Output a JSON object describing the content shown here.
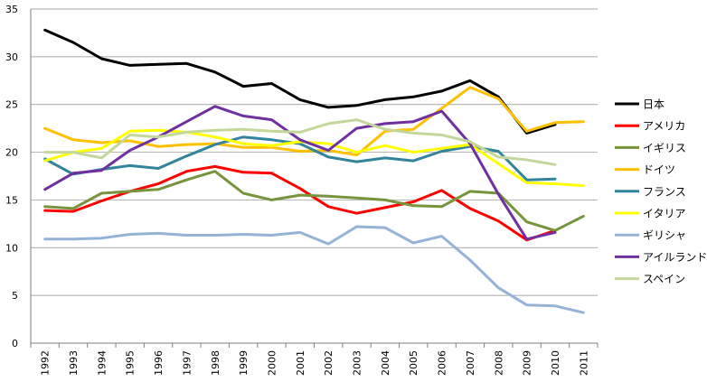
{
  "chart_data": {
    "type": "line",
    "title": "",
    "xlabel": "",
    "ylabel": "",
    "ylim": [
      0,
      35
    ],
    "yticks": [
      0,
      5,
      10,
      15,
      20,
      25,
      30,
      35
    ],
    "grid": true,
    "legend": "right",
    "x": [
      "1992",
      "1993",
      "1994",
      "1995",
      "1996",
      "1997",
      "1998",
      "1999",
      "2000",
      "2001",
      "2002",
      "2003",
      "2004",
      "2005",
      "2006",
      "2007",
      "2008",
      "2009",
      "2010",
      "2011"
    ],
    "series": [
      {
        "name": "日本",
        "color": "#000000",
        "width": 3,
        "values": [
          32.8,
          31.5,
          29.8,
          29.1,
          29.2,
          29.3,
          28.4,
          26.9,
          27.2,
          25.5,
          24.7,
          24.9,
          25.5,
          25.8,
          26.4,
          27.5,
          25.8,
          22.0,
          22.9,
          null
        ]
      },
      {
        "name": "アメリカ",
        "color": "#ff0000",
        "width": 3,
        "values": [
          13.9,
          13.8,
          14.9,
          15.9,
          16.7,
          18.0,
          18.5,
          17.9,
          17.8,
          16.2,
          14.3,
          13.6,
          14.2,
          14.8,
          16.0,
          14.1,
          12.8,
          10.8,
          11.8,
          null
        ]
      },
      {
        "name": "イギリス",
        "color": "#77933c",
        "width": 3,
        "values": [
          14.3,
          14.1,
          15.7,
          15.9,
          16.1,
          17.1,
          18.0,
          15.7,
          15.0,
          15.5,
          15.4,
          15.2,
          15.0,
          14.4,
          14.3,
          15.9,
          15.7,
          12.7,
          11.8,
          13.3
        ]
      },
      {
        "name": "ドイツ",
        "color": "#ffc000",
        "width": 3,
        "values": [
          22.5,
          21.3,
          21.0,
          21.2,
          20.6,
          20.8,
          20.9,
          20.5,
          20.5,
          20.1,
          20.2,
          19.7,
          22.2,
          22.4,
          24.6,
          26.8,
          25.6,
          22.2,
          23.1,
          23.2
        ]
      },
      {
        "name": "フランス",
        "color": "#31849b",
        "width": 3,
        "values": [
          19.3,
          17.7,
          18.2,
          18.6,
          18.3,
          19.6,
          20.8,
          21.6,
          21.3,
          20.9,
          19.5,
          19.0,
          19.4,
          19.1,
          20.1,
          20.6,
          20.1,
          17.1,
          17.2,
          null
        ]
      },
      {
        "name": "イタリア",
        "color": "#ffff00",
        "width": 3,
        "values": [
          19.1,
          20.0,
          20.4,
          22.2,
          22.3,
          22.1,
          21.6,
          20.9,
          20.7,
          21.1,
          20.9,
          20.0,
          20.7,
          20.0,
          20.4,
          20.8,
          18.8,
          16.8,
          16.7,
          16.5
        ]
      },
      {
        "name": "ギリシャ",
        "color": "#95b3d7",
        "width": 3,
        "values": [
          10.9,
          10.9,
          11.0,
          11.4,
          11.5,
          11.3,
          11.3,
          11.4,
          11.3,
          11.6,
          10.4,
          12.2,
          12.1,
          10.5,
          11.2,
          8.7,
          5.8,
          4.0,
          3.9,
          3.2
        ]
      },
      {
        "name": "アイルランド",
        "color": "#7030a0",
        "width": 3,
        "values": [
          16.1,
          17.8,
          18.1,
          20.2,
          21.6,
          23.2,
          24.8,
          23.8,
          23.4,
          21.3,
          20.2,
          22.5,
          23.0,
          23.2,
          24.3,
          20.9,
          15.6,
          10.9,
          11.6,
          null
        ]
      },
      {
        "name": "スペイン",
        "color": "#c4d79b",
        "width": 3,
        "values": [
          20.0,
          20.0,
          19.4,
          21.8,
          21.6,
          22.1,
          22.3,
          22.4,
          22.2,
          22.1,
          23.0,
          23.4,
          22.4,
          22.0,
          21.8,
          21.1,
          19.5,
          19.2,
          18.7,
          null
        ]
      }
    ]
  }
}
